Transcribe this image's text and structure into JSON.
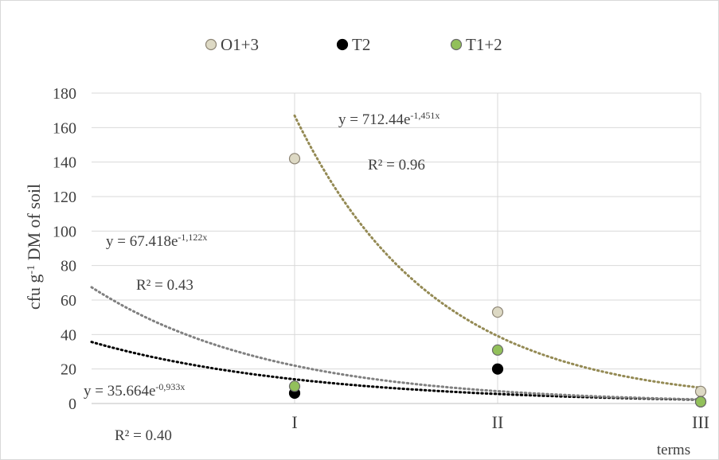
{
  "chart_data": {
    "type": "scatter",
    "categories": [
      "I",
      "II",
      "III"
    ],
    "x": [
      1,
      2,
      3
    ],
    "series": [
      {
        "name": "O1+3",
        "values": [
          142,
          53,
          7
        ],
        "marker_fill": "#ddd9c4",
        "marker_stroke": "#8c8474"
      },
      {
        "name": "T2",
        "values": [
          6,
          20,
          1
        ],
        "marker_fill": "#000000",
        "marker_stroke": "#000000"
      },
      {
        "name": "T1+2",
        "values": [
          10,
          31,
          1
        ],
        "marker_fill": "#92c05a",
        "marker_stroke": "#6a6a6a"
      }
    ],
    "trendlines": [
      {
        "series": "O1+3",
        "type": "exponential",
        "a": 712.44,
        "b": -1.451,
        "x_from": 1.0,
        "x_to": 3.0,
        "color": "#948a54",
        "eq_prefix": "y = 712.44e",
        "eq_exp": "-1,451x",
        "r2": "R² = 0.96"
      },
      {
        "series": "T2",
        "type": "exponential",
        "a": 35.664,
        "b": -0.933,
        "x_from": 0.0,
        "x_to": 3.0,
        "color": "#000000",
        "eq_prefix": "y = 35.664e",
        "eq_exp": "-0,933x",
        "r2": "R² = 0.40"
      },
      {
        "series": "T1+2",
        "type": "exponential",
        "a": 67.418,
        "b": -1.122,
        "x_from": 0.0,
        "x_to": 3.0,
        "color": "#808080",
        "eq_prefix": "y = 67.418e",
        "eq_exp": "-1,122x",
        "r2": "R² = 0.43"
      }
    ],
    "ylim": [
      0,
      180
    ],
    "xlim": [
      0,
      3
    ],
    "yticks": [
      0,
      20,
      40,
      60,
      80,
      100,
      120,
      140,
      160,
      180
    ],
    "ylabel": {
      "prefix": "cfu g",
      "sup": "-1",
      "suffix": " DM of soil"
    },
    "xlabel": "terms",
    "legend_position": "top",
    "grid": {
      "horizontal": true,
      "vertical": true,
      "color": "#d9d9d9"
    }
  }
}
